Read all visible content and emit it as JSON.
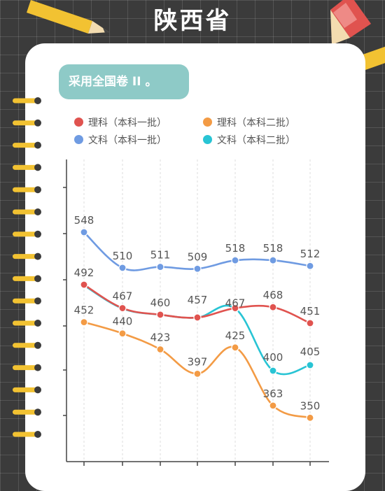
{
  "page": {
    "title": "陕西省",
    "badge": "采用全国卷 II 。"
  },
  "colors": {
    "red": "#e0534f",
    "orange": "#f39b45",
    "blue": "#6f9be2",
    "cyan": "#28c4d4"
  },
  "chart_data": {
    "type": "line",
    "title": "",
    "xlabel": "",
    "ylabel": "",
    "x": [
      "",
      "",
      "",
      "",
      "",
      "",
      ""
    ],
    "grid": "vertical dashed",
    "legend": "top",
    "series": [
      {
        "name": "理科（本科一批）",
        "color": "#e0534f",
        "values": [
          492,
          467,
          460,
          457,
          467,
          468,
          451
        ]
      },
      {
        "name": "理科（本科二批）",
        "color": "#f39b45",
        "values": [
          452,
          440,
          423,
          397,
          425,
          363,
          350
        ]
      },
      {
        "name": "文科（本科一批）",
        "color": "#6f9be2",
        "values": [
          548,
          510,
          511,
          509,
          518,
          518,
          512
        ]
      },
      {
        "name": "文科（本科二批）",
        "color": "#28c4d4",
        "values": [
          null,
          null,
          null,
          null,
          null,
          400,
          405
        ]
      }
    ]
  }
}
